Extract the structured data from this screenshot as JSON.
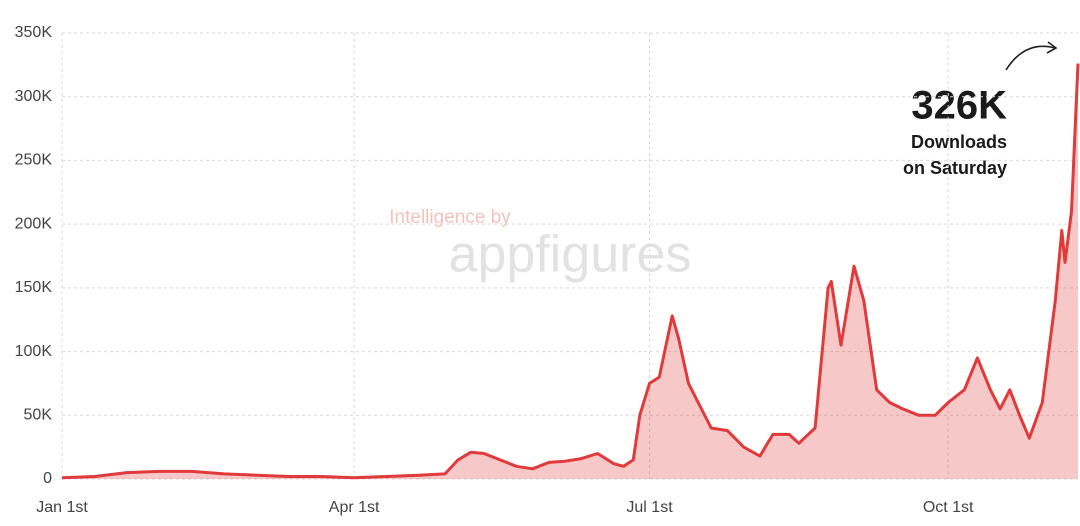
{
  "chart_data": {
    "type": "area",
    "x": [
      0,
      10,
      20,
      30,
      40,
      50,
      60,
      70,
      80,
      90,
      100,
      110,
      118,
      122,
      126,
      130,
      135,
      140,
      145,
      150,
      155,
      160,
      165,
      170,
      173,
      176,
      178,
      181,
      184,
      188,
      190,
      193,
      196,
      200,
      205,
      210,
      215,
      219,
      224,
      227,
      232,
      236,
      237,
      240,
      244,
      247,
      251,
      255,
      259,
      264,
      269,
      273,
      278,
      282,
      286,
      289,
      292,
      295,
      298,
      302,
      306,
      308,
      309,
      311,
      313
    ],
    "series": [
      {
        "name": "Downloads",
        "color": "#e03a3a",
        "values": [
          1000,
          2000,
          5000,
          6000,
          6000,
          4000,
          3000,
          2000,
          2000,
          1000,
          2000,
          3000,
          4000,
          15000,
          21000,
          20000,
          15000,
          10000,
          8000,
          13000,
          14000,
          16000,
          20000,
          12000,
          10000,
          15000,
          50000,
          75000,
          80000,
          128000,
          110000,
          75000,
          60000,
          40000,
          38000,
          25000,
          18000,
          35000,
          35000,
          28000,
          40000,
          150000,
          155000,
          105000,
          167000,
          140000,
          70000,
          60000,
          55000,
          50000,
          50000,
          60000,
          70000,
          95000,
          70000,
          55000,
          70000,
          50000,
          32000,
          60000,
          140000,
          195000,
          170000,
          210000,
          326000
        ]
      }
    ],
    "xlim": [
      0,
      313
    ],
    "xticks": [
      {
        "value": 0,
        "label": "Jan 1st"
      },
      {
        "value": 90,
        "label": "Apr 1st"
      },
      {
        "value": 181,
        "label": "Jul 1st"
      },
      {
        "value": 273,
        "label": "Oct 1st"
      }
    ],
    "ylim": [
      0,
      350000
    ],
    "yticks": [
      0,
      {
        "value": 50000,
        "label": "50K"
      },
      {
        "value": 100000,
        "label": "100K"
      },
      {
        "value": 150000,
        "label": "150K"
      },
      {
        "value": 200000,
        "label": "200K"
      },
      {
        "value": 250000,
        "label": "250K"
      },
      {
        "value": 300000,
        "label": "300K"
      },
      {
        "value": 350000,
        "label": "350K"
      }
    ],
    "grid": true,
    "annotation": {
      "label": "326K",
      "lines": [
        "Downloads",
        "on Saturday"
      ]
    },
    "watermark": [
      "Intelligence by",
      "appfigures"
    ]
  }
}
